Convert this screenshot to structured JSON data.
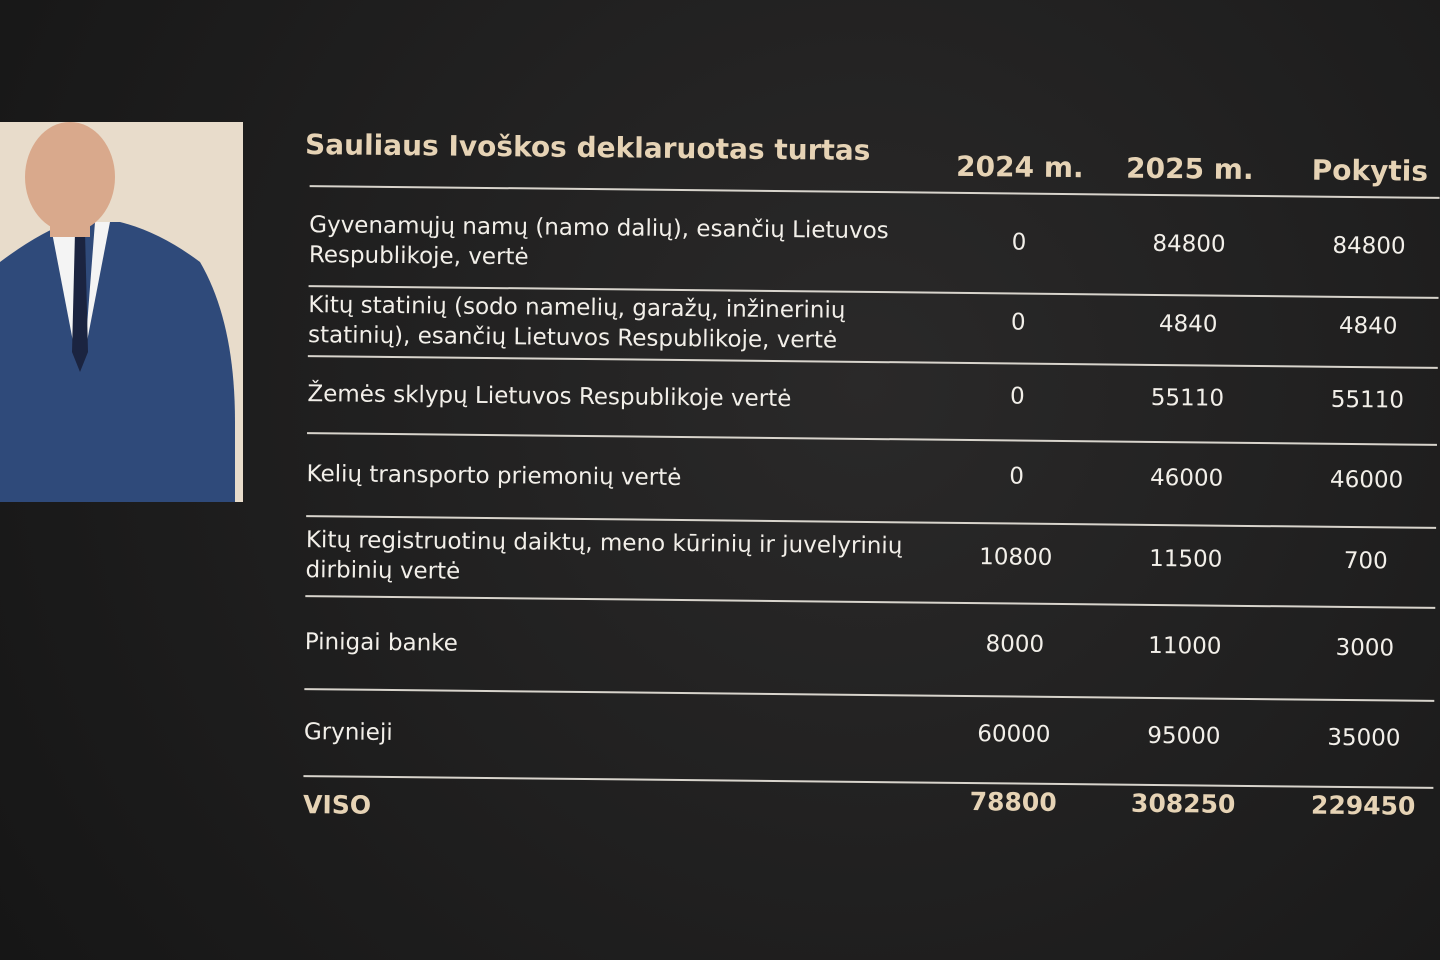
{
  "header": {
    "title": "Sauliaus Ivoškos deklaruotas turtas",
    "columns": [
      "2024 m.",
      "2025 m.",
      "Pokytis"
    ]
  },
  "table": {
    "rows": [
      [
        "Gyvenamųjų namų (namo dalių), esančių Lietuvos Respublikoje, vertė",
        "0",
        "84800",
        "84800"
      ],
      [
        "Kitų statinių (sodo namelių, garažų, inžinerinių statinių), esančių Lietuvos Respublikoje, vertė",
        "0",
        "4840",
        "4840"
      ],
      [
        "Žemės sklypų Lietuvos Respublikoje vertė",
        "0",
        "55110",
        "55110"
      ],
      [
        "Kelių transporto priemonių vertė",
        "0",
        "46000",
        "46000"
      ],
      [
        "Kitų registruotinų daiktų, meno kūrinių ir juvelyrinių dirbinių vertė",
        "10800",
        "11500",
        "700"
      ],
      [
        "Pinigai banke",
        "8000",
        "11000",
        "3000"
      ],
      [
        "Grynieji",
        "60000",
        "95000",
        "35000"
      ]
    ],
    "total": [
      "VISO",
      "78800",
      "308250",
      "229450"
    ]
  }
}
